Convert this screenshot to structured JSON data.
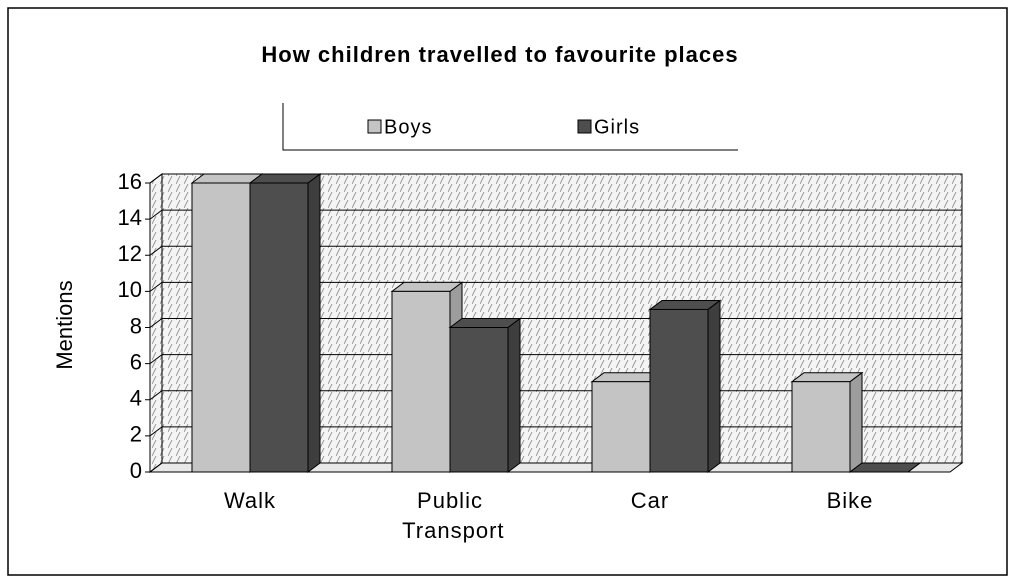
{
  "chart_data": {
    "type": "bar3d",
    "title": "How children travelled to favourite places",
    "y_label": "Mentions",
    "categories": [
      "Walk",
      "Public Transport",
      "Car",
      "Bike"
    ],
    "series": [
      {
        "name": "Boys",
        "color": "#c4c4c4",
        "values": [
          16,
          10,
          5,
          5
        ]
      },
      {
        "name": "Girls",
        "color": "#4e4e4e",
        "values": [
          16,
          8,
          9,
          0
        ]
      }
    ],
    "ylim": [
      0,
      16
    ],
    "yticks": [
      0,
      2,
      4,
      6,
      8,
      10,
      12,
      14,
      16
    ],
    "grid": true
  }
}
